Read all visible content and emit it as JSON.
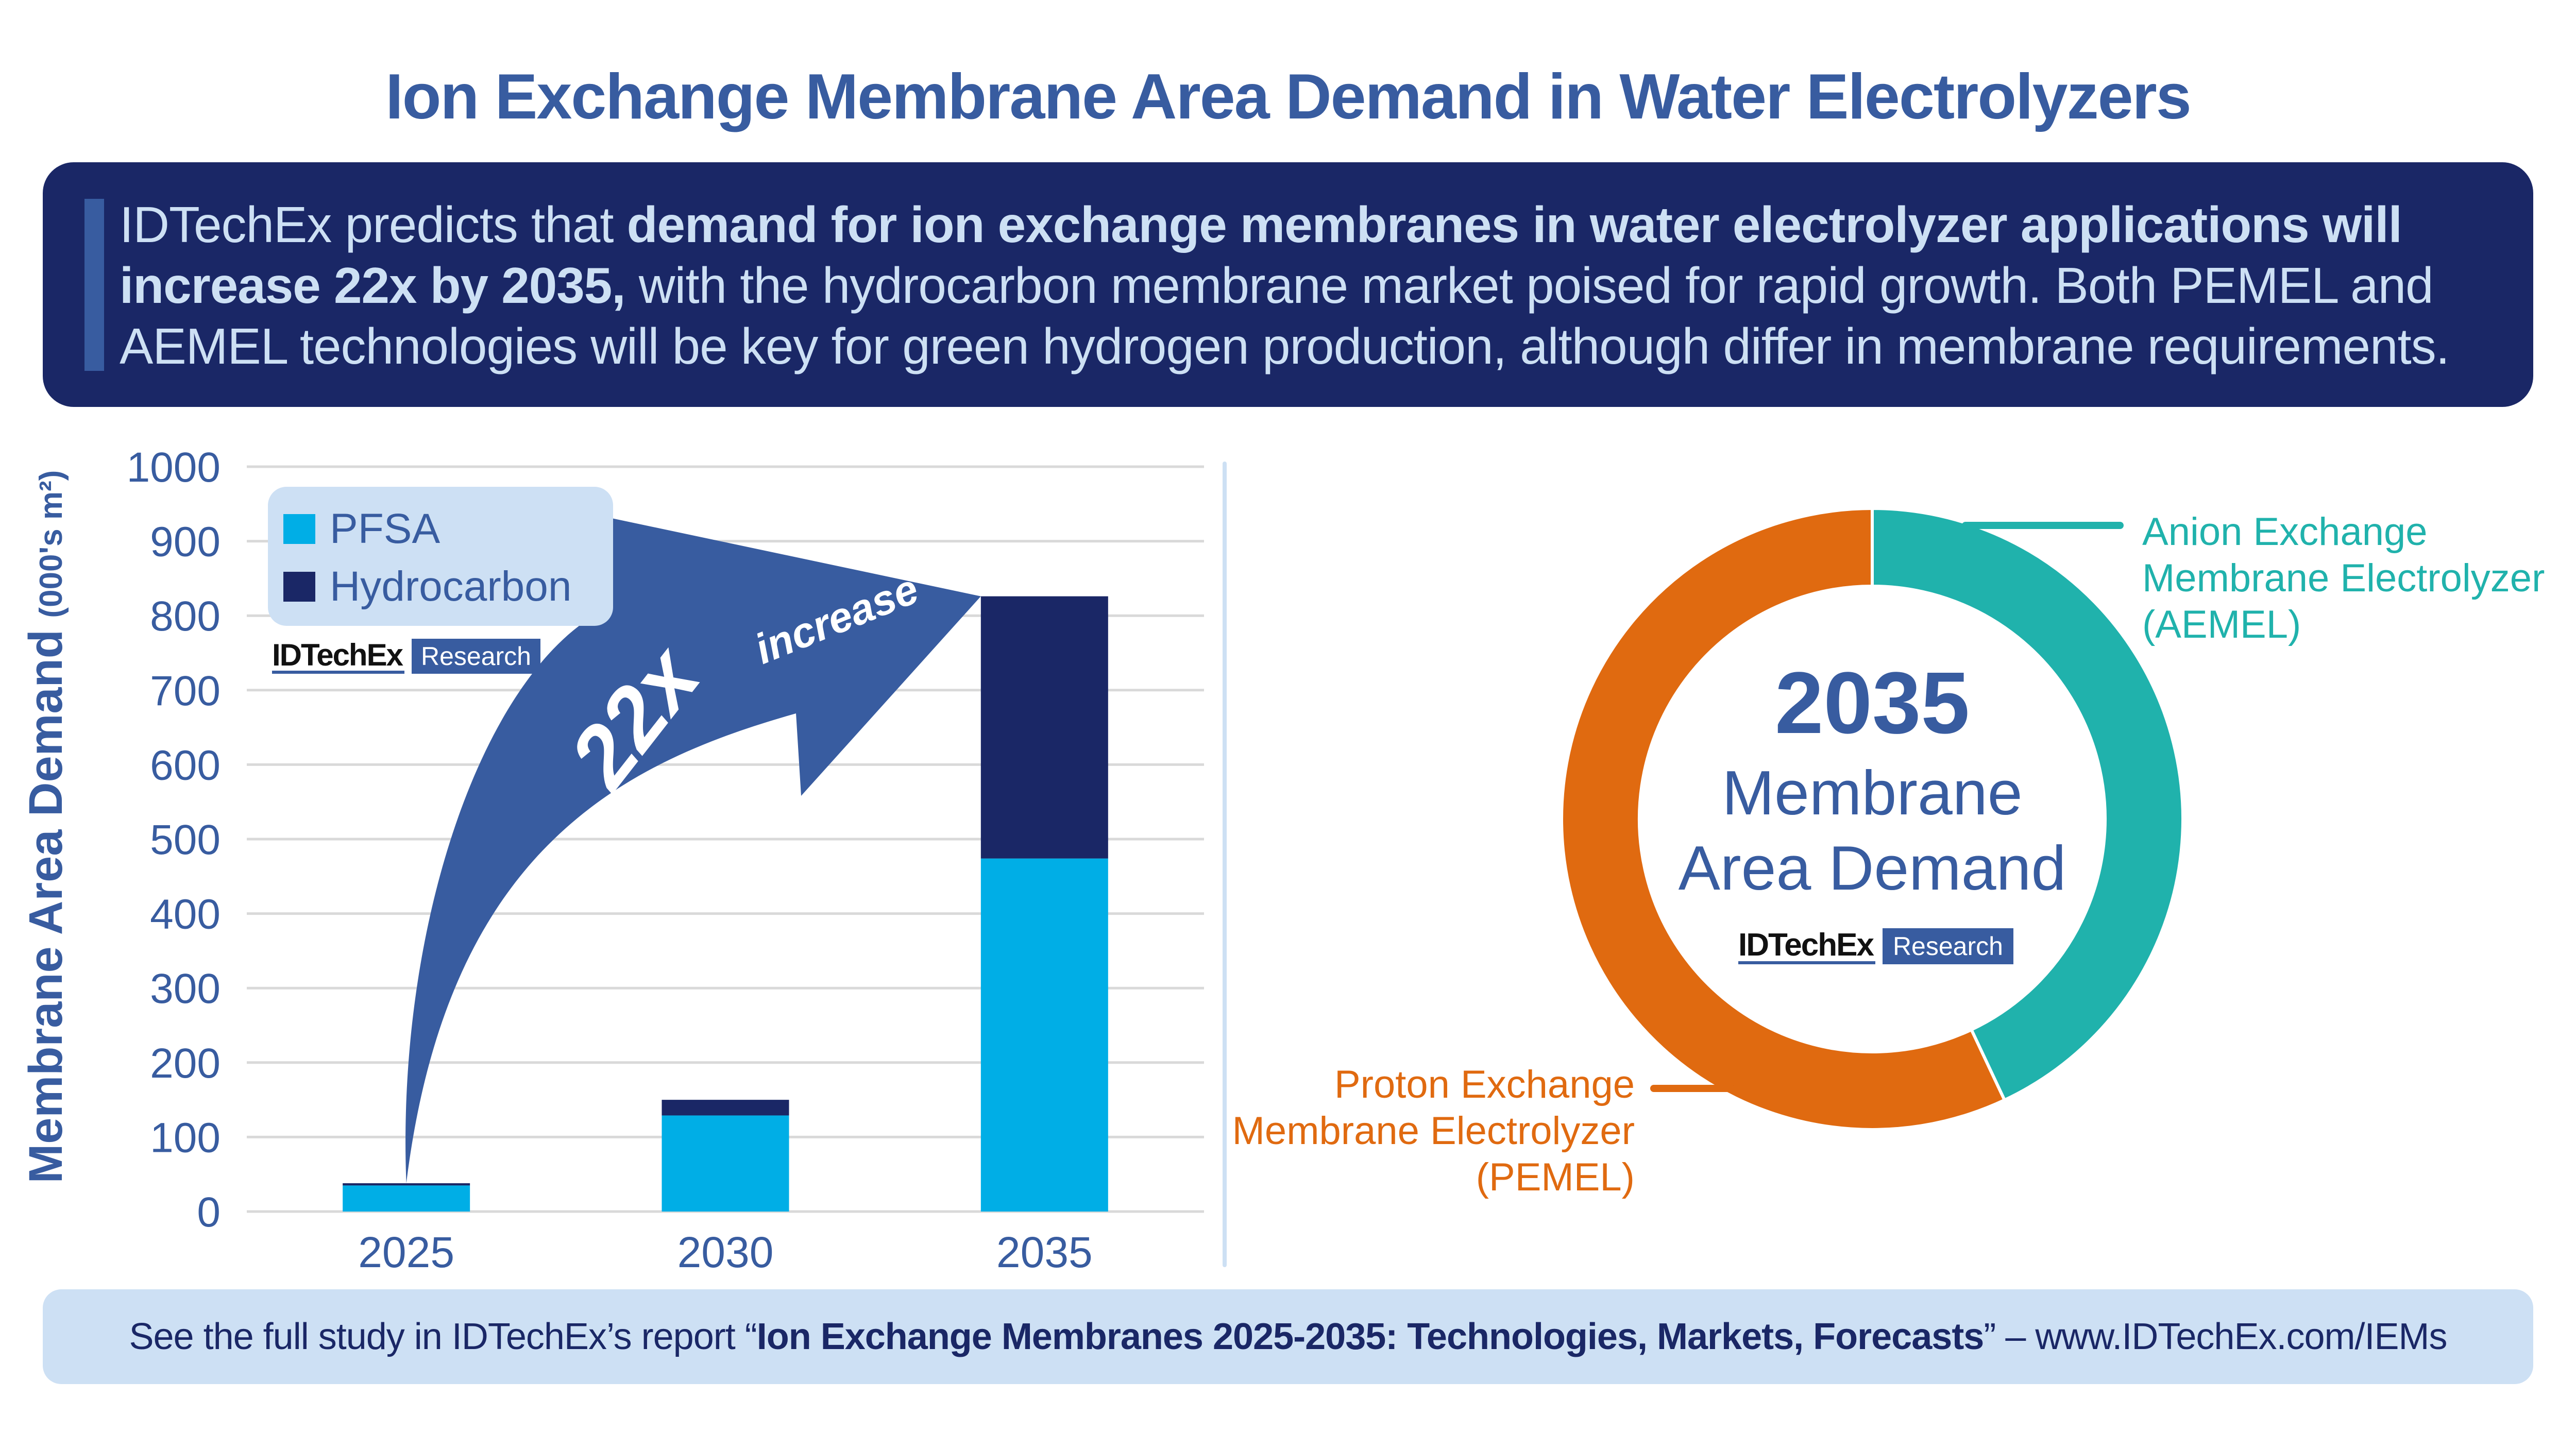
{
  "title": "Ion Exchange Membrane Area Demand in Water Electrolyzers",
  "summary": {
    "part1": "IDTechEx predicts that ",
    "bold1": "demand for ion exchange membranes in water electrolyzer applications will",
    "bold2": "increase 22x by 2035,",
    "part2": " with the hydrocarbon membrane market poised for rapid growth. Both PEMEL and",
    "part3": "AEMEL technologies will be key for green hydrogen production, although differ in membrane requirements."
  },
  "logo": {
    "name": "IDTechEx",
    "badge": "Research"
  },
  "colors": {
    "title": "#385ca0",
    "summary_bg": "#1a2766",
    "pfsa": "#00aee6",
    "hydrocarbon": "#1a2766",
    "arrow": "#385ca0",
    "aemel": "#20b2ac",
    "pemel": "#e06a10",
    "light": "#cde0f4",
    "grid": "#d9d9d9"
  },
  "annotation": {
    "big": "22x",
    "small": "increase"
  },
  "donut_center": {
    "year": "2035",
    "line1": "Membrane",
    "line2": "Area Demand"
  },
  "callouts": {
    "aemel": [
      "Anion Exchange",
      "Membrane Electrolyzer",
      "(AEMEL)"
    ],
    "pemel": [
      "Proton Exchange",
      "Membrane Electrolyzer",
      "(PEMEL)"
    ]
  },
  "footer": {
    "prefix": "See the full study in IDTechEx’s report “",
    "report": "Ion Exchange Membranes 2025-2035: Technologies, Markets, Forecasts",
    "suffix": "” – www.IDTechEx.com/IEMs"
  },
  "chart_data": [
    {
      "type": "bar",
      "stacked": true,
      "title": "",
      "xlabel": "",
      "ylabel": "Membrane Area Demand",
      "ylabel_unit": "(000's m²)",
      "categories": [
        "2025",
        "2030",
        "2035"
      ],
      "series": [
        {
          "name": "PFSA",
          "values": [
            35,
            129,
            474
          ]
        },
        {
          "name": "Hydrocarbon",
          "values": [
            3,
            21,
            352
          ]
        }
      ],
      "ylim": [
        0,
        1000
      ],
      "yticks": [
        0,
        100,
        200,
        300,
        400,
        500,
        600,
        700,
        800,
        900,
        1000
      ],
      "grid": true,
      "legend_position": "top-left"
    },
    {
      "type": "pie",
      "donut": true,
      "title": "2035 Membrane Area Demand",
      "labels": [
        "Anion Exchange Membrane Electrolyzer (AEMEL)",
        "Proton Exchange Membrane Electrolyzer (PEMEL)"
      ],
      "values": [
        43,
        57
      ],
      "unit": "%"
    }
  ]
}
